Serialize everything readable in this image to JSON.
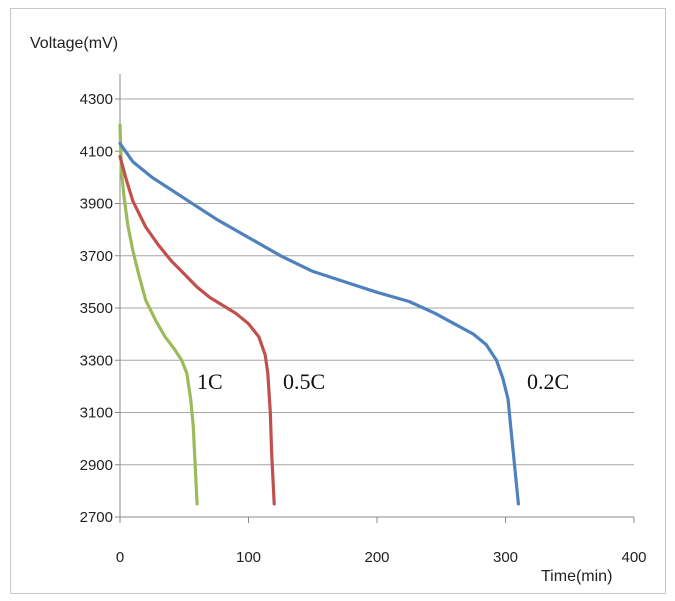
{
  "chart_data": {
    "type": "line",
    "xlabel": "Time(min)",
    "ylabel": "Voltage(mV)",
    "xlim": [
      0,
      400
    ],
    "ylim": [
      2700,
      4300
    ],
    "xticks": [
      0,
      100,
      200,
      300,
      400
    ],
    "yticks": [
      2700,
      2900,
      3100,
      3300,
      3500,
      3700,
      3900,
      4100,
      4300
    ],
    "grid": "horizontal",
    "legend": "none",
    "series": [
      {
        "name": "1C",
        "color": "#9bbb59",
        "points": [
          [
            0,
            4200
          ],
          [
            1,
            4030
          ],
          [
            3,
            3930
          ],
          [
            6,
            3820
          ],
          [
            10,
            3720
          ],
          [
            15,
            3620
          ],
          [
            20,
            3530
          ],
          [
            28,
            3450
          ],
          [
            35,
            3390
          ],
          [
            42,
            3345
          ],
          [
            48,
            3300
          ],
          [
            52,
            3250
          ],
          [
            55,
            3150
          ],
          [
            57,
            3050
          ],
          [
            58,
            2950
          ],
          [
            59,
            2850
          ],
          [
            60,
            2750
          ]
        ]
      },
      {
        "name": "0.5C",
        "color": "#c0504d",
        "points": [
          [
            0,
            4080
          ],
          [
            5,
            3990
          ],
          [
            10,
            3910
          ],
          [
            20,
            3810
          ],
          [
            30,
            3740
          ],
          [
            40,
            3680
          ],
          [
            50,
            3630
          ],
          [
            60,
            3580
          ],
          [
            70,
            3540
          ],
          [
            80,
            3510
          ],
          [
            90,
            3480
          ],
          [
            100,
            3440
          ],
          [
            108,
            3390
          ],
          [
            113,
            3320
          ],
          [
            115,
            3250
          ],
          [
            117,
            3100
          ],
          [
            118,
            2950
          ],
          [
            119,
            2850
          ],
          [
            120,
            2750
          ]
        ]
      },
      {
        "name": "0.2C",
        "color": "#4f81bd",
        "points": [
          [
            0,
            4130
          ],
          [
            10,
            4060
          ],
          [
            25,
            4000
          ],
          [
            50,
            3920
          ],
          [
            75,
            3840
          ],
          [
            100,
            3770
          ],
          [
            125,
            3700
          ],
          [
            150,
            3640
          ],
          [
            175,
            3600
          ],
          [
            200,
            3560
          ],
          [
            225,
            3525
          ],
          [
            245,
            3480
          ],
          [
            260,
            3440
          ],
          [
            275,
            3400
          ],
          [
            285,
            3360
          ],
          [
            293,
            3300
          ],
          [
            298,
            3230
          ],
          [
            302,
            3150
          ],
          [
            304,
            3050
          ],
          [
            306,
            2950
          ],
          [
            308,
            2850
          ],
          [
            310,
            2750
          ]
        ]
      }
    ]
  }
}
